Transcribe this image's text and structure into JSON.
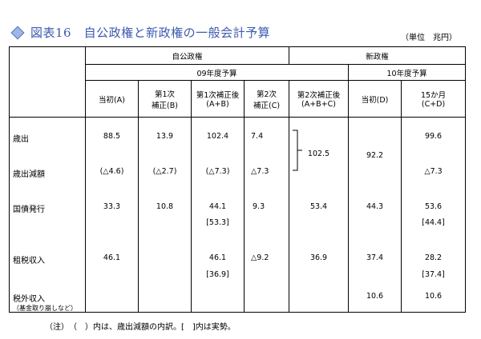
{
  "title": "図表16　自公政権と新政権の一般会計予算",
  "unit": "（単位　兆円）",
  "headers": {
    "jiko": "自公政権",
    "shin": "新政権",
    "fy09": "09年度予算",
    "fy10": "10年度予算",
    "cols": [
      "当初(A)",
      "第1次\n補正(B)",
      "第1次補正後\n(A+B)",
      "第2次\n補正(C)",
      "第2次補正後\n(A+B+C)",
      "当初(D)",
      "15か月\n(C+D)"
    ]
  },
  "rows": {
    "saishutsu": {
      "label": "歳出",
      "A": "88.5",
      "B": "13.9",
      "AB": "102.4",
      "C": "7.4",
      "D": "",
      "CD": "99.6"
    },
    "gengaku": {
      "label": "歳出減額",
      "A": "(△4.6)",
      "B": "(△2.7)",
      "AB": "(△7.3)",
      "C": "△7.3",
      "CD": "△7.3"
    },
    "merged_ABC": "102.5",
    "merged_D": "92.2",
    "kokusai": {
      "label": "国債発行",
      "A": "33.3",
      "B": "10.8",
      "AB": "44.1",
      "AB2": "[53.3]",
      "C": "9.3",
      "ABC": "53.4",
      "D": "44.3",
      "CD": "53.6",
      "CD2": "[44.4]"
    },
    "sozei": {
      "label": "租税収入",
      "A": "46.1",
      "AB": "46.1",
      "AB2": "[36.9]",
      "C": "△9.2",
      "ABC": "36.9",
      "D": "37.4",
      "CD": "28.2",
      "CD2": "[37.4]"
    },
    "zeigai": {
      "label": "税外収入",
      "sub": "（基金取り崩しなど）",
      "D": "10.6",
      "CD": "10.6"
    }
  },
  "note": "（注）　（　）内は、歳出減額の内訳。[　]内は実勢。"
}
